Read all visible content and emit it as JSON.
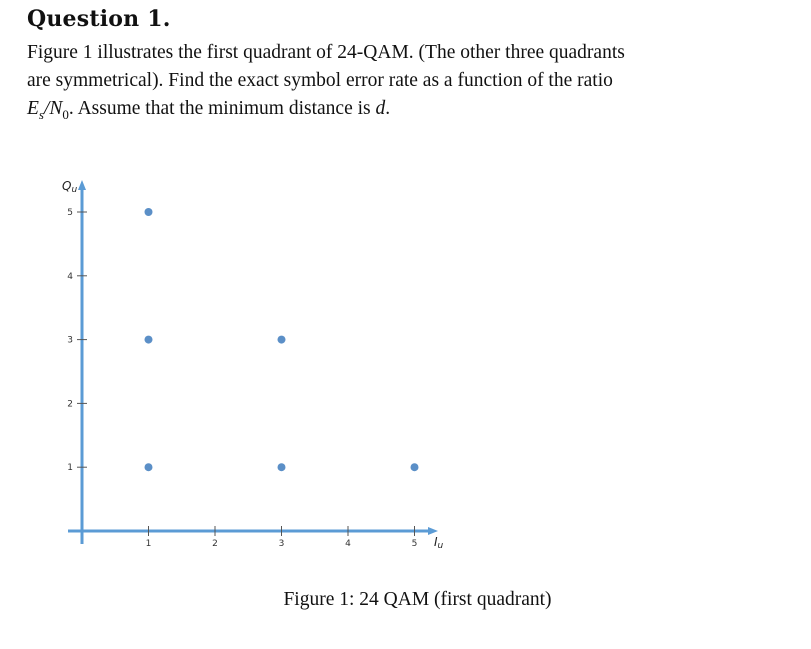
{
  "question": {
    "heading": "Question 1.",
    "line1": "Figure 1 illustrates the first quadrant of 24-QAM. (The other three quadrants",
    "line2": "are symmetrical). Find the exact symbol error rate as a function of the ratio",
    "line3_pre": "E",
    "line3_sub1": "s",
    "line3_slash": "/N",
    "line3_sub2": "0",
    "line3_post": ". Assume that the minimum distance is ",
    "line3_var": "d",
    "line3_end": "."
  },
  "figure": {
    "caption": "Figure 1: 24 QAM (first quadrant)"
  },
  "chart_data": {
    "type": "scatter",
    "xlabel_main": "I",
    "xlabel_sub": "u",
    "ylabel_main": "Q",
    "ylabel_sub": "u",
    "x_ticks": [
      1,
      2,
      3,
      4,
      5
    ],
    "y_ticks": [
      1,
      2,
      3,
      4,
      5
    ],
    "points": [
      {
        "x": 1,
        "y": 5
      },
      {
        "x": 1,
        "y": 3
      },
      {
        "x": 3,
        "y": 3
      },
      {
        "x": 1,
        "y": 1
      },
      {
        "x": 3,
        "y": 1
      },
      {
        "x": 5,
        "y": 1
      }
    ],
    "axis_color": "#5b9bd5",
    "point_color": "#5b8fc7",
    "tick_color": "#555555"
  }
}
